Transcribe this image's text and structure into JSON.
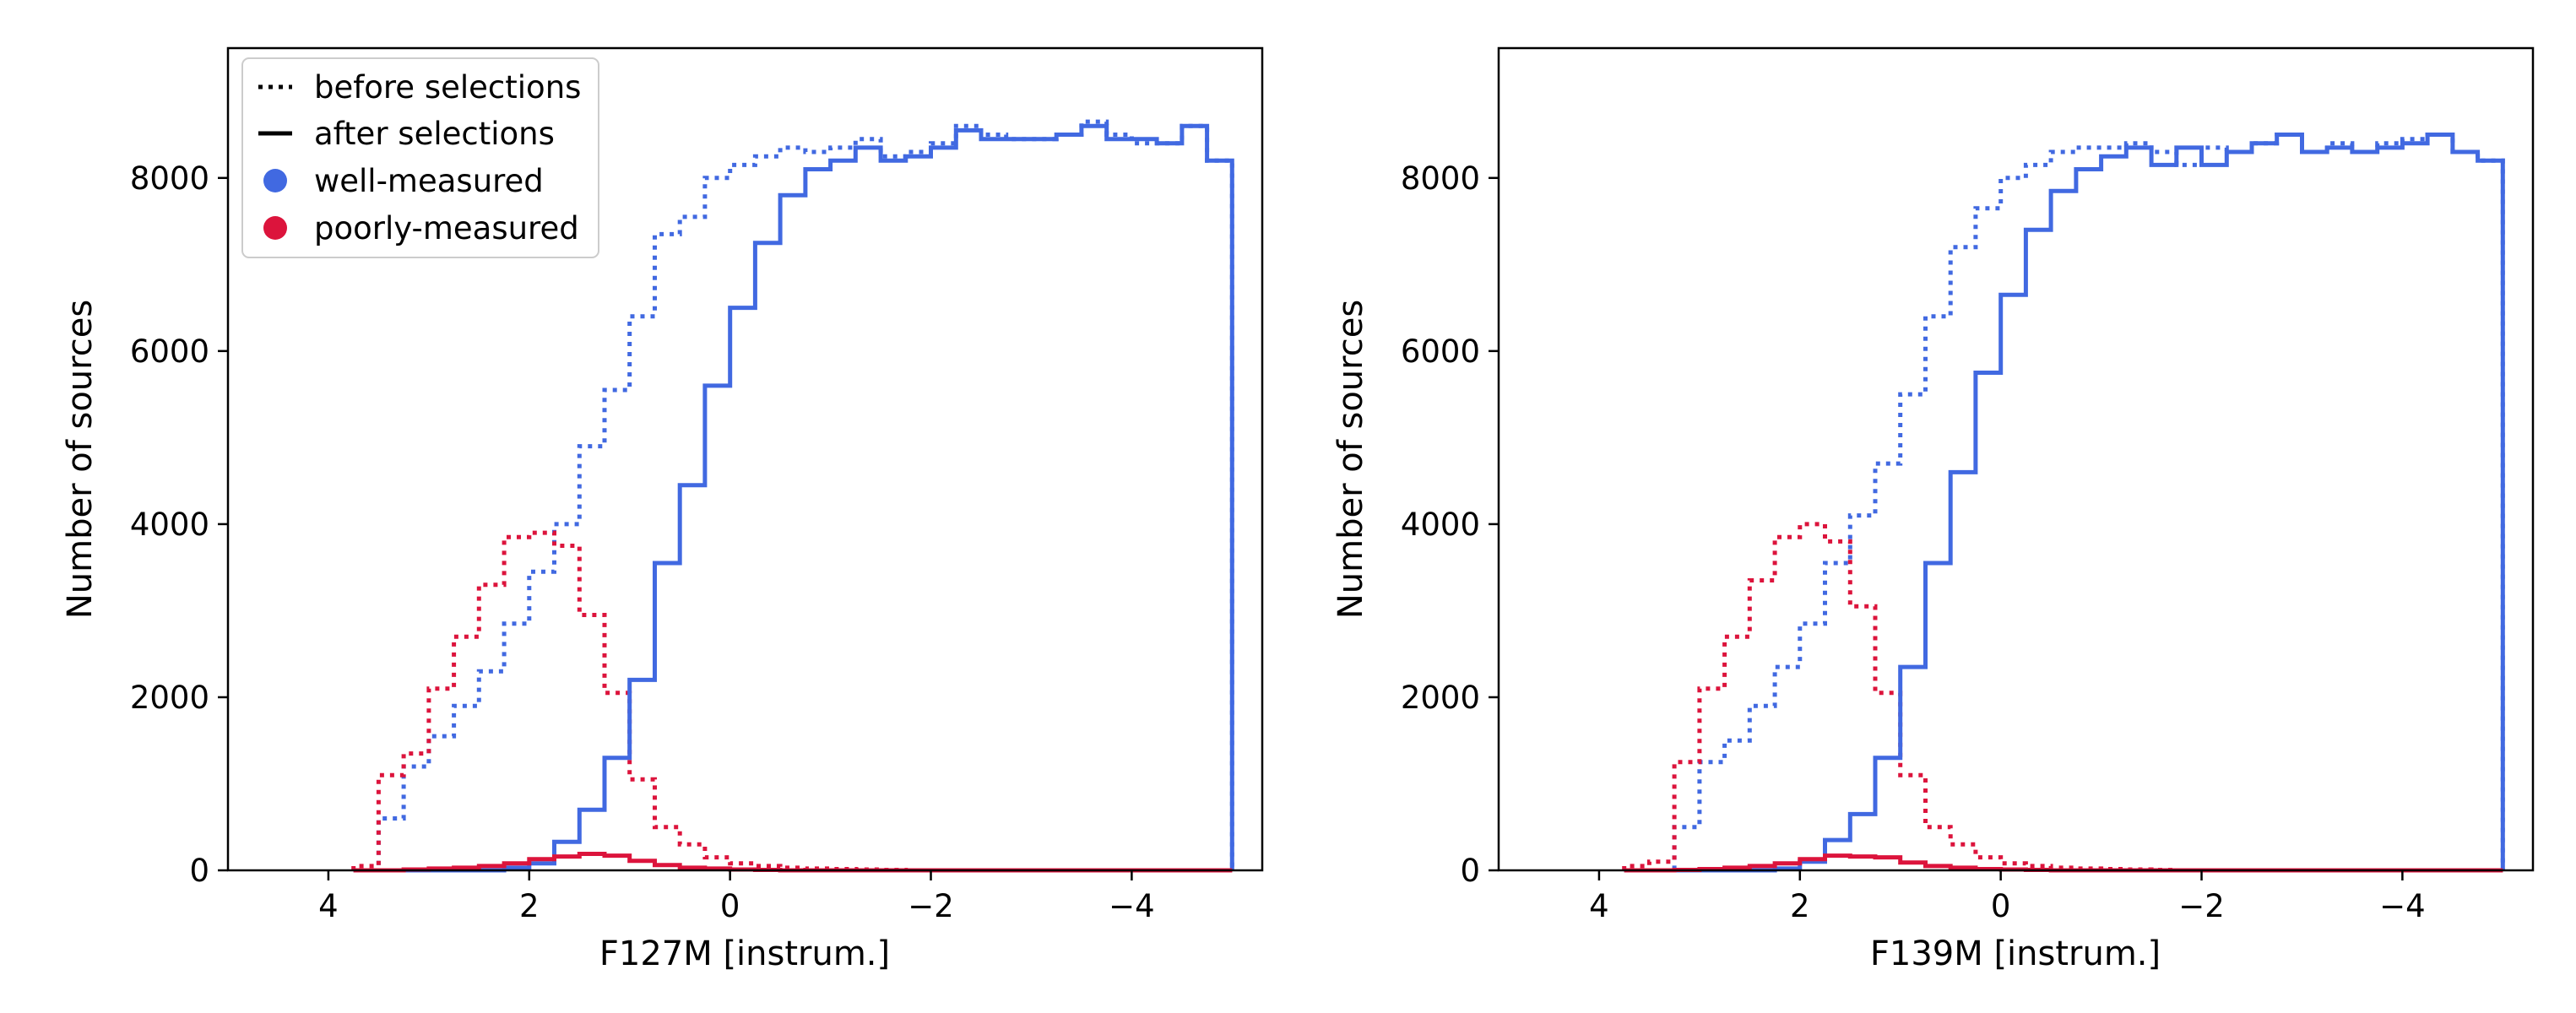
{
  "colors": {
    "well": "#4169e1",
    "poor": "#dc143c",
    "axis": "#000000"
  },
  "legend": {
    "placement": "upper-left",
    "entries": [
      {
        "label": "before selections",
        "style": "dotted",
        "color": "#000000",
        "marker": "line"
      },
      {
        "label": "after selections",
        "style": "solid",
        "color": "#000000",
        "marker": "line"
      },
      {
        "label": "well-measured",
        "color": "#4169e1",
        "marker": "circle"
      },
      {
        "label": "poorly-measured",
        "color": "#dc143c",
        "marker": "circle"
      }
    ]
  },
  "chart_data": [
    {
      "type": "histogram-step",
      "xlabel": "F127M [instrum.]",
      "ylabel": "Number of sources",
      "xlim": [
        5.0,
        -5.3
      ],
      "ylim": [
        0,
        9500
      ],
      "x_inverted": true,
      "xticks": [
        4,
        2,
        0,
        -2,
        -4
      ],
      "xtick_labels": [
        "4",
        "2",
        "0",
        "−2",
        "−4"
      ],
      "yticks": [
        0,
        2000,
        4000,
        6000,
        8000
      ],
      "bin_edges": [
        3.75,
        3.5,
        3.25,
        3.0,
        2.75,
        2.5,
        2.25,
        2.0,
        1.75,
        1.5,
        1.25,
        1.0,
        0.75,
        0.5,
        0.25,
        0.0,
        -0.25,
        -0.5,
        -0.75,
        -1.0,
        -1.25,
        -1.5,
        -1.75,
        -2.0,
        -2.25,
        -2.5,
        -2.75,
        -3.0,
        -3.25,
        -3.5,
        -3.75,
        -4.0,
        -4.25,
        -4.5,
        -4.75,
        -5.0
      ],
      "series": [
        {
          "name": "well-measured",
          "phase": "before selections",
          "style": "dotted",
          "color": "#4169e1",
          "values": [
            0,
            600,
            1200,
            1550,
            1900,
            2300,
            2850,
            3450,
            4000,
            4900,
            5550,
            6400,
            7350,
            7550,
            8000,
            8150,
            8250,
            8350,
            8300,
            8350,
            8450,
            8250,
            8300,
            8400,
            8600,
            8500,
            8450,
            8450,
            8500,
            8650,
            8500,
            8400,
            8400,
            8600,
            8200
          ]
        },
        {
          "name": "well-measured",
          "phase": "after selections",
          "style": "solid",
          "color": "#4169e1",
          "values": [
            0,
            0,
            0,
            0,
            0,
            0,
            30,
            80,
            330,
            700,
            1300,
            2200,
            3550,
            4450,
            5600,
            6500,
            7250,
            7800,
            8100,
            8200,
            8350,
            8200,
            8250,
            8350,
            8550,
            8450,
            8450,
            8450,
            8500,
            8600,
            8450,
            8450,
            8400,
            8600,
            8200
          ]
        },
        {
          "name": "poorly-measured",
          "phase": "before selections",
          "style": "dotted",
          "color": "#dc143c",
          "values": [
            50,
            1100,
            1350,
            2100,
            2700,
            3300,
            3850,
            3900,
            3750,
            2950,
            2050,
            1050,
            500,
            300,
            150,
            80,
            50,
            30,
            20,
            15,
            10,
            5,
            0,
            0,
            0,
            0,
            0,
            0,
            0,
            0,
            0,
            0,
            0,
            0,
            0
          ]
        },
        {
          "name": "poorly-measured",
          "phase": "after selections",
          "style": "solid",
          "color": "#dc143c",
          "values": [
            0,
            0,
            10,
            20,
            30,
            50,
            80,
            130,
            160,
            190,
            170,
            110,
            60,
            30,
            20,
            10,
            5,
            0,
            0,
            0,
            0,
            0,
            0,
            0,
            0,
            0,
            0,
            0,
            0,
            0,
            0,
            0,
            0,
            0,
            0
          ]
        }
      ]
    },
    {
      "type": "histogram-step",
      "xlabel": "F139M [instrum.]",
      "ylabel": "Number of sources",
      "xlim": [
        5.0,
        -5.3
      ],
      "ylim": [
        0,
        9500
      ],
      "x_inverted": true,
      "xticks": [
        4,
        2,
        0,
        -2,
        -4
      ],
      "xtick_labels": [
        "4",
        "2",
        "0",
        "−2",
        "−4"
      ],
      "yticks": [
        0,
        2000,
        4000,
        6000,
        8000
      ],
      "bin_edges": [
        3.75,
        3.5,
        3.25,
        3.0,
        2.75,
        2.5,
        2.25,
        2.0,
        1.75,
        1.5,
        1.25,
        1.0,
        0.75,
        0.5,
        0.25,
        0.0,
        -0.25,
        -0.5,
        -0.75,
        -1.0,
        -1.25,
        -1.5,
        -1.75,
        -2.0,
        -2.25,
        -2.5,
        -2.75,
        -3.0,
        -3.25,
        -3.5,
        -3.75,
        -4.0,
        -4.25,
        -4.5,
        -4.75,
        -5.0
      ],
      "series": [
        {
          "name": "well-measured",
          "phase": "before selections",
          "style": "dotted",
          "color": "#4169e1",
          "values": [
            0,
            0,
            500,
            1250,
            1500,
            1900,
            2350,
            2850,
            3550,
            4100,
            4700,
            5500,
            6400,
            7200,
            7650,
            8000,
            8150,
            8300,
            8350,
            8350,
            8400,
            8300,
            8150,
            8350,
            8300,
            8400,
            8500,
            8300,
            8400,
            8300,
            8400,
            8450,
            8500,
            8300,
            8200
          ]
        },
        {
          "name": "well-measured",
          "phase": "after selections",
          "style": "solid",
          "color": "#4169e1",
          "values": [
            0,
            0,
            0,
            0,
            0,
            0,
            20,
            100,
            350,
            650,
            1300,
            2350,
            3550,
            4600,
            5750,
            6650,
            7400,
            7850,
            8100,
            8250,
            8350,
            8150,
            8350,
            8150,
            8300,
            8400,
            8500,
            8300,
            8350,
            8300,
            8350,
            8400,
            8500,
            8300,
            8200
          ]
        },
        {
          "name": "poorly-measured",
          "phase": "before selections",
          "style": "dotted",
          "color": "#dc143c",
          "values": [
            50,
            100,
            1250,
            2100,
            2700,
            3350,
            3850,
            4000,
            3800,
            3050,
            2050,
            1100,
            500,
            300,
            150,
            80,
            50,
            30,
            20,
            15,
            10,
            5,
            0,
            0,
            0,
            0,
            0,
            0,
            0,
            0,
            0,
            0,
            0,
            0,
            0
          ]
        },
        {
          "name": "poorly-measured",
          "phase": "after selections",
          "style": "solid",
          "color": "#dc143c",
          "values": [
            0,
            0,
            5,
            15,
            30,
            50,
            80,
            130,
            170,
            160,
            150,
            90,
            50,
            30,
            15,
            10,
            5,
            0,
            0,
            0,
            0,
            0,
            0,
            0,
            0,
            0,
            0,
            0,
            0,
            0,
            0,
            0,
            0,
            0,
            0
          ]
        }
      ]
    }
  ]
}
